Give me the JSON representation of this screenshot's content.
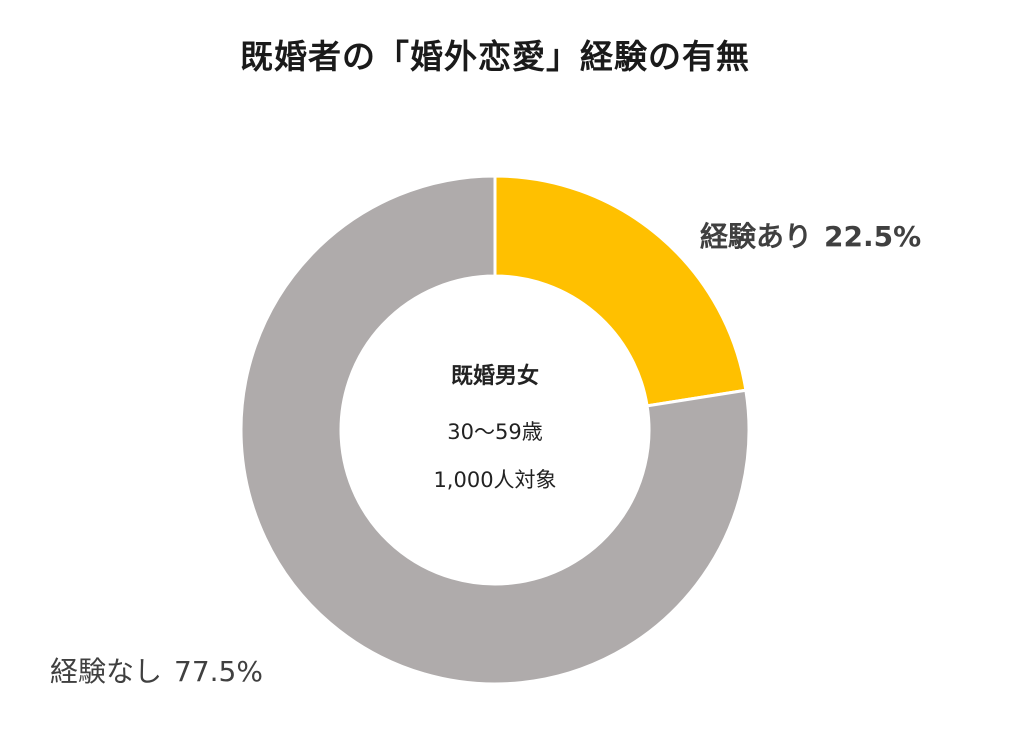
{
  "chart_data": {
    "type": "pie",
    "title": "既婚者の「婚外恋愛」経験の有無",
    "center": {
      "heading": "既婚男女",
      "age_range": "30～59歳",
      "sample": "1,000人対象"
    },
    "slices": [
      {
        "label": "経験あり",
        "value": 22.5,
        "value_text": "22.5%",
        "color": "#FFC000"
      },
      {
        "label": "経験なし",
        "value": 77.5,
        "value_text": "77.5%",
        "color": "#AFABAB"
      }
    ]
  }
}
